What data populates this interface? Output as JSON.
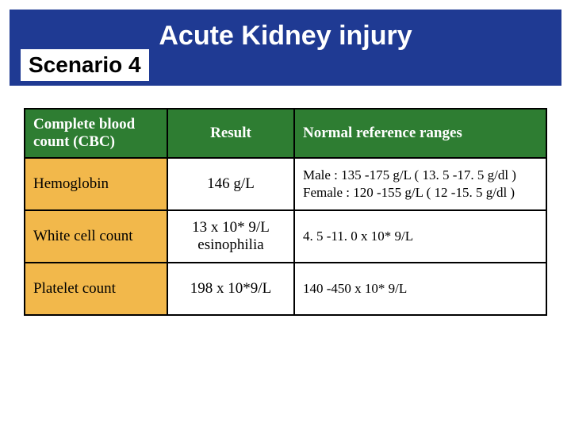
{
  "header": {
    "title": "Acute Kidney injury",
    "scenario": "Scenario 4",
    "band_color": "#1f3a93",
    "title_color": "#ffffff"
  },
  "table": {
    "header_bg": "#2e7d32",
    "label_bg": "#f2b84b",
    "columns": {
      "label": "Complete blood count (CBC)",
      "result": "Result",
      "ref": "Normal reference ranges"
    },
    "rows": [
      {
        "label": "Hemoglobin",
        "result": "146  g/L",
        "ref": "Male :  135 -175  g/L  ( 13. 5 -17. 5 g/dl )\nFemale :  120 -155 g/L ( 12 -15. 5 g/dl )"
      },
      {
        "label": "White cell count",
        "result": "13 x 10* 9/L\nesinophilia",
        "ref": "4. 5 -11. 0  x 10* 9/L"
      },
      {
        "label": "Platelet count",
        "result": "198 x 10*9/L",
        "ref": "140 -450   x 10* 9/L"
      }
    ]
  }
}
